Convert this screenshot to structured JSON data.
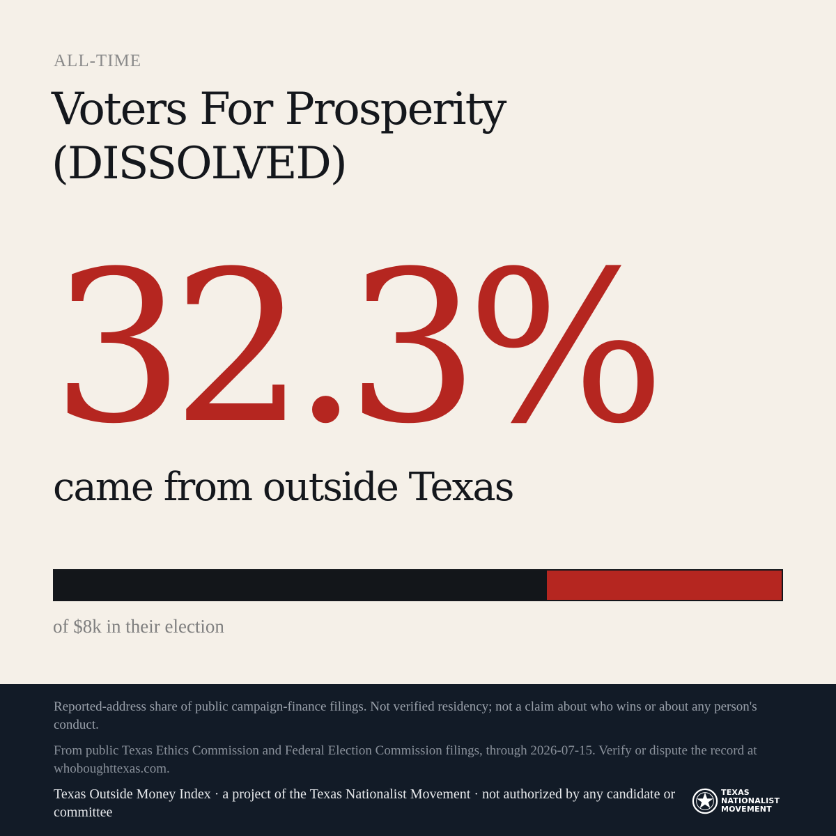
{
  "header": {
    "eyebrow": "ALL-TIME",
    "title": "Voters For Prosperity (DISSOLVED)"
  },
  "stat": {
    "percent_label": "32.3%",
    "caption": "came from outside Texas"
  },
  "bar": {
    "instate_fraction": 0.677,
    "outside_fraction": 0.323,
    "instate_color": "#13161a",
    "outside_color": "#b52620",
    "caption": "of $8k in their election"
  },
  "footer": {
    "disclaimer": "Reported-address share of public campaign-finance filings. Not verified residency; not a claim about who wins or about any person's conduct.",
    "source": "From public Texas Ethics Commission and Federal Election Commission filings, through 2026-07-15. Verify or dispute the record at whoboughttexas.com.",
    "credit": "Texas Outside Money Index · a project of the Texas Nationalist Movement · not authorized by any candidate or committee",
    "logo": {
      "icon": "star-seal-icon",
      "line1": "TEXAS",
      "line2": "NATIONALIST",
      "line3": "MOVEMENT"
    }
  },
  "colors": {
    "background": "#f5f0e8",
    "accent": "#b52620",
    "ink": "#14171c",
    "footer": "#121b27"
  }
}
